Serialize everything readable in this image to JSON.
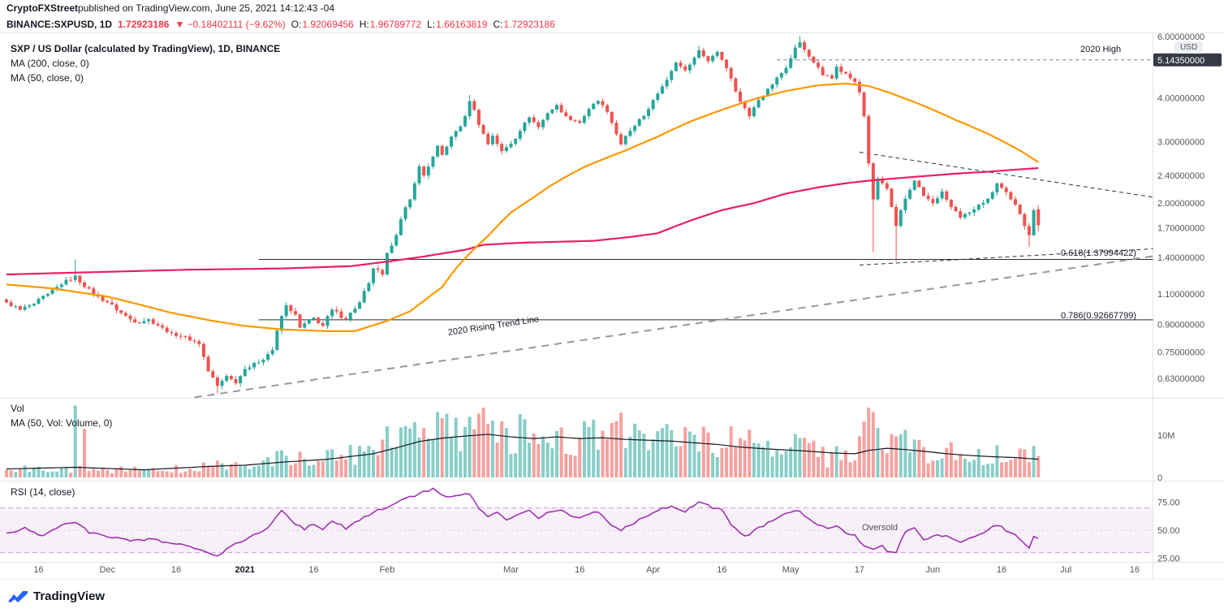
{
  "attribution": {
    "brand": "CryptoFXStreet",
    "rest": " published on TradingView.com, June 25, 2021 14:12:43 -04"
  },
  "symbol_bar": {
    "tokens": [
      {
        "t": "BINANCE:SXPUSD, 1D",
        "c": "#131722",
        "b": true
      },
      {
        "t": "1.72923186",
        "c": "#f23645",
        "b": true
      },
      {
        "t": "▼ −0.18402111 (−9.62%)",
        "c": "#f23645",
        "b": false
      },
      {
        "t": "O:",
        "c": "#131722",
        "b": false,
        "tight": true
      },
      {
        "t": "1.92069456",
        "c": "#f23645",
        "b": false
      },
      {
        "t": "H:",
        "c": "#131722",
        "b": false,
        "tight": true
      },
      {
        "t": "1.96789772",
        "c": "#f23645",
        "b": false
      },
      {
        "t": "L:",
        "c": "#131722",
        "b": false,
        "tight": true
      },
      {
        "t": "1.66163819",
        "c": "#f23645",
        "b": false
      },
      {
        "t": "C:",
        "c": "#131722",
        "b": false,
        "tight": true
      },
      {
        "t": "1.72923186",
        "c": "#f23645",
        "b": false
      }
    ]
  },
  "main_chart": {
    "title": "SXP / US Dollar (calculated by TradingView), 1D, BINANCE",
    "ma200_label": "MA (200, close, 0)",
    "ma50_label": "MA (50, close, 0)",
    "high_label": "2020 High",
    "fib_618_label": "0.618(1.37994422)",
    "fib_786_label": "0.786(0.92667799)",
    "trend_label": "2020 Rising Trend Line",
    "currency_label": "USD",
    "axis_ticks": [
      {
        "label": "6.00000000",
        "value": 6.0
      },
      {
        "label": "4.00000000",
        "value": 4.0
      },
      {
        "label": "3.00000000",
        "value": 3.0
      },
      {
        "label": "2.40000000",
        "value": 2.4
      },
      {
        "label": "2.00000000",
        "value": 2.0
      },
      {
        "label": "1.70000000",
        "value": 1.7
      },
      {
        "label": "1.40000000",
        "value": 1.4
      },
      {
        "label": "1.10000000",
        "value": 1.1
      },
      {
        "label": "0.90000000",
        "value": 0.9
      },
      {
        "label": "0.75000000",
        "value": 0.75
      },
      {
        "label": "0.63000000",
        "value": 0.63
      }
    ],
    "highlight_tick": {
      "label": "5.14350000",
      "value": 5.1435
    }
  },
  "volume_panel": {
    "label": "Vol",
    "ma_label": "MA (50, Vol: Volume, 0)",
    "axis_ticks": [
      {
        "label": "10M",
        "value": 10
      },
      {
        "label": "0",
        "value": 0
      }
    ]
  },
  "rsi_panel": {
    "label": "RSI (14, close)",
    "oversold_label": "Oversold",
    "axis_ticks": [
      {
        "label": "75.00",
        "value": 75
      },
      {
        "label": "50.00",
        "value": 50
      },
      {
        "label": "25.00",
        "value": 25
      }
    ]
  },
  "footer": {
    "brand": "TradingView"
  },
  "chart_data": {
    "type": "candlestick",
    "symbol": "BINANCE:SXPUSD",
    "interval": "1D",
    "y_scale": "log",
    "ylim": [
      0.55,
      6.2
    ],
    "n_candles": 226,
    "last_candle_ohlc": [
      1.92069456,
      1.96789772,
      1.66163819,
      1.72923186
    ],
    "levels": {
      "fib_618": 1.37994422,
      "fib_786": 0.92667799,
      "high_2020": 5.1435
    },
    "colors": {
      "up": "#26a69a",
      "down": "#ef5350",
      "ma50": "#ff9800",
      "ma200": "#e91e63",
      "rsi": "#9c27b0",
      "rsi_band": "rgba(156,39,176,0.07)",
      "rsi_band_line": "rgba(156,39,176,0.45)",
      "vol_ma": "#131722",
      "grid": "#e0e3eb",
      "axis_text": "#555555",
      "tag_bg": "#363a45"
    },
    "close_anchors": [
      [
        0,
        1.04
      ],
      [
        3,
        0.99
      ],
      [
        6,
        1.03
      ],
      [
        9,
        1.1
      ],
      [
        12,
        1.17
      ],
      [
        15,
        1.24
      ],
      [
        17,
        1.15
      ],
      [
        20,
        1.08
      ],
      [
        22,
        1.04
      ],
      [
        25,
        0.97
      ],
      [
        28,
        0.91
      ],
      [
        31,
        0.93
      ],
      [
        34,
        0.88
      ],
      [
        36,
        0.85
      ],
      [
        39,
        0.83
      ],
      [
        42,
        0.79
      ],
      [
        44,
        0.66
      ],
      [
        46,
        0.6
      ],
      [
        48,
        0.64
      ],
      [
        50,
        0.61
      ],
      [
        52,
        0.67
      ],
      [
        55,
        0.7
      ],
      [
        58,
        0.76
      ],
      [
        60,
        0.95
      ],
      [
        61,
        1.02
      ],
      [
        63,
        0.96
      ],
      [
        64,
        0.88
      ],
      [
        67,
        0.94
      ],
      [
        69,
        0.89
      ],
      [
        71,
        0.99
      ],
      [
        74,
        0.93
      ],
      [
        77,
        1.04
      ],
      [
        79,
        1.18
      ],
      [
        80,
        1.3
      ],
      [
        82,
        1.25
      ],
      [
        83,
        1.44
      ],
      [
        85,
        1.62
      ],
      [
        86,
        1.8
      ],
      [
        88,
        2.05
      ],
      [
        89,
        2.28
      ],
      [
        90,
        2.55
      ],
      [
        91,
        2.4
      ],
      [
        93,
        2.72
      ],
      [
        94,
        2.92
      ],
      [
        95,
        2.75
      ],
      [
        97,
        3.1
      ],
      [
        99,
        3.32
      ],
      [
        100,
        3.55
      ],
      [
        101,
        3.92
      ],
      [
        102,
        3.7
      ],
      [
        103,
        3.35
      ],
      [
        105,
        2.95
      ],
      [
        106,
        3.12
      ],
      [
        108,
        2.82
      ],
      [
        110,
        2.96
      ],
      [
        112,
        3.22
      ],
      [
        114,
        3.52
      ],
      [
        116,
        3.3
      ],
      [
        118,
        3.62
      ],
      [
        120,
        3.82
      ],
      [
        122,
        3.55
      ],
      [
        125,
        3.4
      ],
      [
        127,
        3.72
      ],
      [
        129,
        3.92
      ],
      [
        131,
        3.65
      ],
      [
        133,
        3.15
      ],
      [
        134,
        2.95
      ],
      [
        136,
        3.22
      ],
      [
        138,
        3.48
      ],
      [
        140,
        3.72
      ],
      [
        141,
        3.95
      ],
      [
        143,
        4.32
      ],
      [
        145,
        4.78
      ],
      [
        146,
        5.05
      ],
      [
        148,
        4.8
      ],
      [
        150,
        5.22
      ],
      [
        151,
        5.48
      ],
      [
        153,
        5.1
      ],
      [
        155,
        5.42
      ],
      [
        156,
        5.15
      ],
      [
        158,
        4.55
      ],
      [
        160,
        3.9
      ],
      [
        162,
        3.55
      ],
      [
        164,
        3.95
      ],
      [
        166,
        4.25
      ],
      [
        168,
        4.58
      ],
      [
        170,
        4.88
      ],
      [
        171,
        5.2
      ],
      [
        172,
        5.58
      ],
      [
        173,
        5.78
      ],
      [
        174,
        5.5
      ],
      [
        176,
        5.05
      ],
      [
        178,
        4.65
      ],
      [
        180,
        4.55
      ],
      [
        181,
        4.92
      ],
      [
        183,
        4.7
      ],
      [
        185,
        4.45
      ],
      [
        186,
        4.15
      ],
      [
        187,
        3.55
      ],
      [
        188,
        2.6
      ],
      [
        189,
        2.05
      ],
      [
        190,
        2.35
      ],
      [
        192,
        2.2
      ],
      [
        193,
        1.95
      ],
      [
        194,
        1.72
      ],
      [
        196,
        2.06
      ],
      [
        198,
        2.32
      ],
      [
        200,
        2.1
      ],
      [
        202,
        2.0
      ],
      [
        204,
        2.16
      ],
      [
        206,
        1.95
      ],
      [
        208,
        1.82
      ],
      [
        210,
        1.88
      ],
      [
        212,
        1.98
      ],
      [
        214,
        2.06
      ],
      [
        216,
        2.28
      ],
      [
        218,
        2.15
      ],
      [
        220,
        1.98
      ],
      [
        221,
        1.86
      ],
      [
        222,
        1.72
      ],
      [
        223,
        1.62
      ],
      [
        224,
        1.91
      ],
      [
        225,
        1.73
      ]
    ],
    "wick_low_overrides": {
      "46": 0.57,
      "189": 1.45,
      "194": 1.36,
      "223": 1.5
    },
    "wick_high_overrides": {
      "15": 1.38,
      "101": 4.08,
      "151": 5.65,
      "173": 6.02
    },
    "ma50_anchors": [
      [
        0,
        1.17
      ],
      [
        10,
        1.14
      ],
      [
        22,
        1.08
      ],
      [
        36,
        0.97
      ],
      [
        45,
        0.92
      ],
      [
        52,
        0.89
      ],
      [
        60,
        0.87
      ],
      [
        70,
        0.86
      ],
      [
        76,
        0.86
      ],
      [
        83,
        0.92
      ],
      [
        88,
        0.98
      ],
      [
        91,
        1.05
      ],
      [
        95,
        1.15
      ],
      [
        98,
        1.3
      ],
      [
        102,
        1.48
      ],
      [
        105,
        1.61
      ],
      [
        110,
        1.88
      ],
      [
        115,
        2.08
      ],
      [
        119,
        2.26
      ],
      [
        126,
        2.54
      ],
      [
        135,
        2.83
      ],
      [
        142,
        3.1
      ],
      [
        149,
        3.42
      ],
      [
        156,
        3.7
      ],
      [
        163,
        3.97
      ],
      [
        170,
        4.19
      ],
      [
        177,
        4.35
      ],
      [
        183,
        4.4
      ],
      [
        188,
        4.33
      ],
      [
        193,
        4.12
      ],
      [
        200,
        3.8
      ],
      [
        207,
        3.46
      ],
      [
        214,
        3.16
      ],
      [
        221,
        2.83
      ],
      [
        225,
        2.62
      ]
    ],
    "ma200_anchors": [
      [
        0,
        1.25
      ],
      [
        20,
        1.27
      ],
      [
        40,
        1.29
      ],
      [
        60,
        1.3
      ],
      [
        75,
        1.32
      ],
      [
        83,
        1.36
      ],
      [
        90,
        1.4
      ],
      [
        100,
        1.47
      ],
      [
        104,
        1.52
      ],
      [
        112,
        1.54
      ],
      [
        120,
        1.55
      ],
      [
        128,
        1.56
      ],
      [
        136,
        1.6
      ],
      [
        142,
        1.64
      ],
      [
        149,
        1.78
      ],
      [
        156,
        1.91
      ],
      [
        163,
        2.0
      ],
      [
        170,
        2.13
      ],
      [
        177,
        2.22
      ],
      [
        183,
        2.28
      ],
      [
        188,
        2.32
      ],
      [
        193,
        2.35
      ],
      [
        200,
        2.39
      ],
      [
        207,
        2.43
      ],
      [
        214,
        2.46
      ],
      [
        221,
        2.5
      ],
      [
        225,
        2.52
      ]
    ],
    "vol_ma_anchors_m": [
      [
        0,
        2.0
      ],
      [
        15,
        2.4
      ],
      [
        30,
        1.8
      ],
      [
        44,
        2.6
      ],
      [
        52,
        2.9
      ],
      [
        60,
        3.6
      ],
      [
        70,
        4.3
      ],
      [
        80,
        5.6
      ],
      [
        85,
        7.0
      ],
      [
        90,
        8.5
      ],
      [
        95,
        9.3
      ],
      [
        100,
        9.8
      ],
      [
        105,
        10.2
      ],
      [
        110,
        9.6
      ],
      [
        115,
        9.2
      ],
      [
        120,
        9.6
      ],
      [
        125,
        9.2
      ],
      [
        130,
        9.4
      ],
      [
        135,
        9.0
      ],
      [
        140,
        8.8
      ],
      [
        145,
        8.6
      ],
      [
        150,
        8.2
      ],
      [
        155,
        7.8
      ],
      [
        160,
        7.2
      ],
      [
        165,
        6.8
      ],
      [
        170,
        6.5
      ],
      [
        175,
        6.2
      ],
      [
        180,
        5.8
      ],
      [
        185,
        5.6
      ],
      [
        188,
        6.4
      ],
      [
        192,
        6.9
      ],
      [
        196,
        6.6
      ],
      [
        200,
        6.2
      ],
      [
        205,
        5.6
      ],
      [
        210,
        5.2
      ],
      [
        215,
        4.9
      ],
      [
        220,
        4.7
      ],
      [
        225,
        4.3
      ]
    ],
    "vol_overrides": {
      "15": 17.0,
      "17": 11.5,
      "188": 16.5,
      "189": 15.5
    },
    "rsi_anchors": [
      [
        0,
        47
      ],
      [
        4,
        52
      ],
      [
        8,
        45
      ],
      [
        12,
        55
      ],
      [
        15,
        58
      ],
      [
        18,
        48
      ],
      [
        22,
        45
      ],
      [
        27,
        40
      ],
      [
        31,
        42
      ],
      [
        36,
        39
      ],
      [
        41,
        34
      ],
      [
        44,
        29
      ],
      [
        46,
        27
      ],
      [
        49,
        36
      ],
      [
        53,
        44
      ],
      [
        57,
        52
      ],
      [
        60,
        68
      ],
      [
        63,
        56
      ],
      [
        65,
        51
      ],
      [
        67,
        56
      ],
      [
        69,
        50
      ],
      [
        71,
        58
      ],
      [
        74,
        52
      ],
      [
        77,
        59
      ],
      [
        80,
        66
      ],
      [
        83,
        71
      ],
      [
        86,
        77
      ],
      [
        89,
        81
      ],
      [
        91,
        84
      ],
      [
        93,
        87
      ],
      [
        95,
        82
      ],
      [
        97,
        79
      ],
      [
        100,
        82
      ],
      [
        101,
        83
      ],
      [
        103,
        70
      ],
      [
        105,
        62
      ],
      [
        107,
        66
      ],
      [
        109,
        59
      ],
      [
        112,
        64
      ],
      [
        114,
        68
      ],
      [
        116,
        61
      ],
      [
        118,
        66
      ],
      [
        121,
        68
      ],
      [
        124,
        61
      ],
      [
        127,
        64
      ],
      [
        129,
        67
      ],
      [
        132,
        55
      ],
      [
        134,
        50
      ],
      [
        137,
        57
      ],
      [
        140,
        64
      ],
      [
        143,
        69
      ],
      [
        145,
        71
      ],
      [
        148,
        67
      ],
      [
        151,
        75
      ],
      [
        154,
        70
      ],
      [
        156,
        69
      ],
      [
        158,
        54
      ],
      [
        161,
        44
      ],
      [
        164,
        52
      ],
      [
        167,
        58
      ],
      [
        170,
        65
      ],
      [
        173,
        67
      ],
      [
        176,
        56
      ],
      [
        179,
        52
      ],
      [
        181,
        54
      ],
      [
        183,
        48
      ],
      [
        185,
        46
      ],
      [
        187,
        36
      ],
      [
        189,
        33
      ],
      [
        191,
        36
      ],
      [
        192,
        31
      ],
      [
        194,
        30
      ],
      [
        196,
        49
      ],
      [
        198,
        52
      ],
      [
        200,
        42
      ],
      [
        203,
        46
      ],
      [
        206,
        44
      ],
      [
        208,
        40
      ],
      [
        211,
        45
      ],
      [
        214,
        50
      ],
      [
        216,
        55
      ],
      [
        218,
        50
      ],
      [
        220,
        46
      ],
      [
        222,
        38
      ],
      [
        223,
        35
      ],
      [
        224,
        45
      ],
      [
        225,
        43
      ]
    ],
    "rsi_band": [
      30,
      70
    ],
    "lines": [
      {
        "name": "fib-618-line",
        "i1": 55,
        "p1": 1.37994422,
        "i2": 250,
        "p2": 1.37994422,
        "color": "#2a2e39",
        "w": 1,
        "dash": ""
      },
      {
        "name": "fib-786-line",
        "i1": 55,
        "p1": 0.92667799,
        "i2": 250,
        "p2": 0.92667799,
        "color": "#2a2e39",
        "w": 1,
        "dash": ""
      },
      {
        "name": "rising-2020-trend-line",
        "i1": 41,
        "p1": 0.556,
        "i2": 250,
        "p2": 1.41,
        "color": "#9598a1",
        "w": 2,
        "dash": "9 7"
      },
      {
        "name": "descending-resistance-line",
        "i1": 186,
        "p1": 2.8,
        "i2": 250,
        "p2": 2.08,
        "color": "#2a2e39",
        "w": 1,
        "dash": "5 4"
      },
      {
        "name": "rising-support-line",
        "i1": 186,
        "p1": 1.33,
        "i2": 250,
        "p2": 1.48,
        "color": "#2a2e39",
        "w": 1,
        "dash": "5 4"
      },
      {
        "name": "high-2020-level-line",
        "i1": 168,
        "p1": 5.1435,
        "i2": 250,
        "p2": 5.1435,
        "color": "#787b86",
        "w": 1,
        "dash": "4 4"
      }
    ],
    "time_ticks": [
      {
        "i": 7,
        "label": "16"
      },
      {
        "i": 22,
        "label": "Dec"
      },
      {
        "i": 37,
        "label": "16"
      },
      {
        "i": 52,
        "label": "2021",
        "year": true
      },
      {
        "i": 67,
        "label": "16"
      },
      {
        "i": 83,
        "label": "Feb"
      },
      {
        "i": 110,
        "label": "Mar"
      },
      {
        "i": 125,
        "label": "16"
      },
      {
        "i": 141,
        "label": "Apr"
      },
      {
        "i": 156,
        "label": "16"
      },
      {
        "i": 171,
        "label": "May"
      },
      {
        "i": 186,
        "label": "17"
      },
      {
        "i": 202,
        "label": "Jun"
      },
      {
        "i": 217,
        "label": "16"
      },
      {
        "i": 231,
        "label": "Jul"
      },
      {
        "i": 246,
        "label": "16"
      }
    ]
  }
}
